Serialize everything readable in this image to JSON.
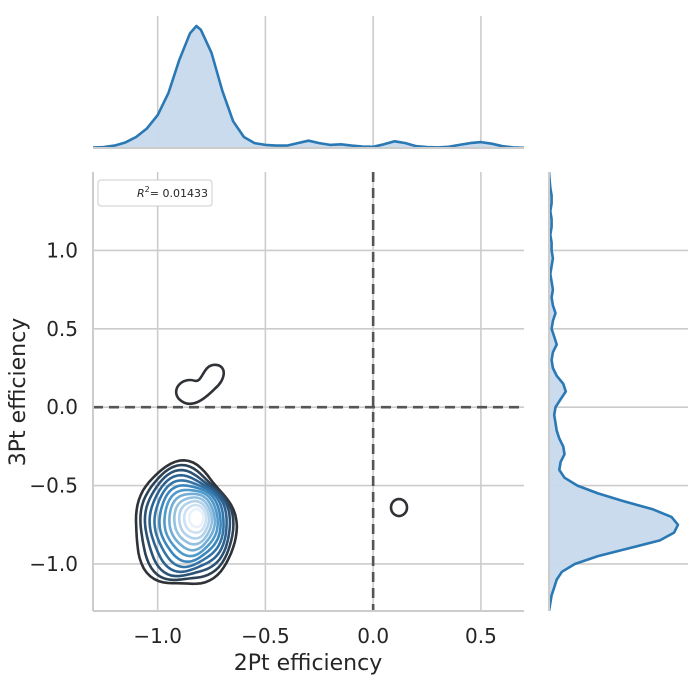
{
  "chart_data": {
    "type": "jointplot-kde",
    "xlabel": "2Pt efficiency",
    "ylabel": "3Pt efficiency",
    "xlim": [
      -1.3,
      0.7
    ],
    "ylim": [
      -1.3,
      1.5
    ],
    "xticks": [
      -1.0,
      -0.5,
      0.0,
      0.5
    ],
    "xtick_labels": [
      "−1.0",
      "−0.5",
      "0.0",
      "0.5"
    ],
    "yticks": [
      -1.0,
      -0.5,
      0.0,
      0.5,
      1.0
    ],
    "ytick_labels": [
      "−1.0",
      "−0.5",
      "0.0",
      "0.5",
      "1.0"
    ],
    "grid": true,
    "legend": {
      "text_prefix": "R",
      "text_sup": "2",
      "text_suffix": "= 0.01433",
      "location": "upper-left"
    },
    "reference_lines": {
      "x": 0.0,
      "y": 0.0,
      "style": "dashed"
    },
    "joint_kde_contours": {
      "main_cluster_center": [
        -0.83,
        -0.72
      ],
      "contour_levels": 12,
      "extra_blobs": [
        {
          "center": [
            -0.8,
            0.13
          ],
          "shape": "peanut"
        },
        {
          "center": [
            0.12,
            -0.64
          ],
          "shape": "small ring"
        }
      ]
    },
    "marginal_x": {
      "x": [
        -1.3,
        -1.25,
        -1.2,
        -1.15,
        -1.1,
        -1.05,
        -1.0,
        -0.95,
        -0.9,
        -0.85,
        -0.82,
        -0.8,
        -0.75,
        -0.7,
        -0.65,
        -0.6,
        -0.55,
        -0.5,
        -0.45,
        -0.4,
        -0.35,
        -0.3,
        -0.25,
        -0.2,
        -0.15,
        -0.1,
        -0.05,
        0.0,
        0.05,
        0.1,
        0.15,
        0.2,
        0.25,
        0.3,
        0.35,
        0.4,
        0.45,
        0.5,
        0.55,
        0.6,
        0.65,
        0.7
      ],
      "density": [
        0.003,
        0.008,
        0.02,
        0.045,
        0.09,
        0.16,
        0.27,
        0.45,
        0.72,
        0.94,
        1.0,
        0.97,
        0.78,
        0.47,
        0.22,
        0.09,
        0.04,
        0.025,
        0.02,
        0.02,
        0.04,
        0.06,
        0.04,
        0.025,
        0.03,
        0.02,
        0.012,
        0.01,
        0.03,
        0.055,
        0.04,
        0.015,
        0.008,
        0.005,
        0.01,
        0.025,
        0.04,
        0.048,
        0.035,
        0.015,
        0.005,
        0.002
      ]
    },
    "marginal_y": {
      "y": [
        -1.3,
        -1.25,
        -1.2,
        -1.15,
        -1.1,
        -1.05,
        -1.0,
        -0.95,
        -0.9,
        -0.85,
        -0.8,
        -0.75,
        -0.7,
        -0.65,
        -0.6,
        -0.55,
        -0.5,
        -0.45,
        -0.4,
        -0.35,
        -0.3,
        -0.25,
        -0.2,
        -0.15,
        -0.1,
        -0.05,
        0.0,
        0.05,
        0.1,
        0.15,
        0.2,
        0.25,
        0.3,
        0.35,
        0.4,
        0.45,
        0.5,
        0.55,
        0.6,
        0.65,
        0.7,
        0.75,
        0.8,
        0.85,
        0.9,
        0.95,
        1.0,
        1.05,
        1.1,
        1.15,
        1.2,
        1.25,
        1.3,
        1.35,
        1.4,
        1.45,
        1.5
      ],
      "density": [
        0.0,
        0.01,
        0.02,
        0.04,
        0.06,
        0.1,
        0.2,
        0.38,
        0.62,
        0.86,
        0.97,
        1.0,
        0.95,
        0.8,
        0.58,
        0.38,
        0.22,
        0.12,
        0.08,
        0.09,
        0.12,
        0.11,
        0.08,
        0.06,
        0.05,
        0.04,
        0.05,
        0.09,
        0.13,
        0.11,
        0.06,
        0.03,
        0.02,
        0.03,
        0.06,
        0.04,
        0.02,
        0.03,
        0.05,
        0.03,
        0.02,
        0.03,
        0.02,
        0.01,
        0.02,
        0.03,
        0.02,
        0.02,
        0.01,
        0.02,
        0.02,
        0.01,
        0.02,
        0.02,
        0.01,
        0.005,
        0.0
      ]
    },
    "colors": {
      "marginal_line": "#2a78b4",
      "marginal_fill": "#c6d9ec",
      "contour_outer": "#2f3236",
      "contour_inner": "#e9f1fa",
      "grid": "#cccccc",
      "spine": "#cccccc",
      "refline": "#555555"
    }
  }
}
